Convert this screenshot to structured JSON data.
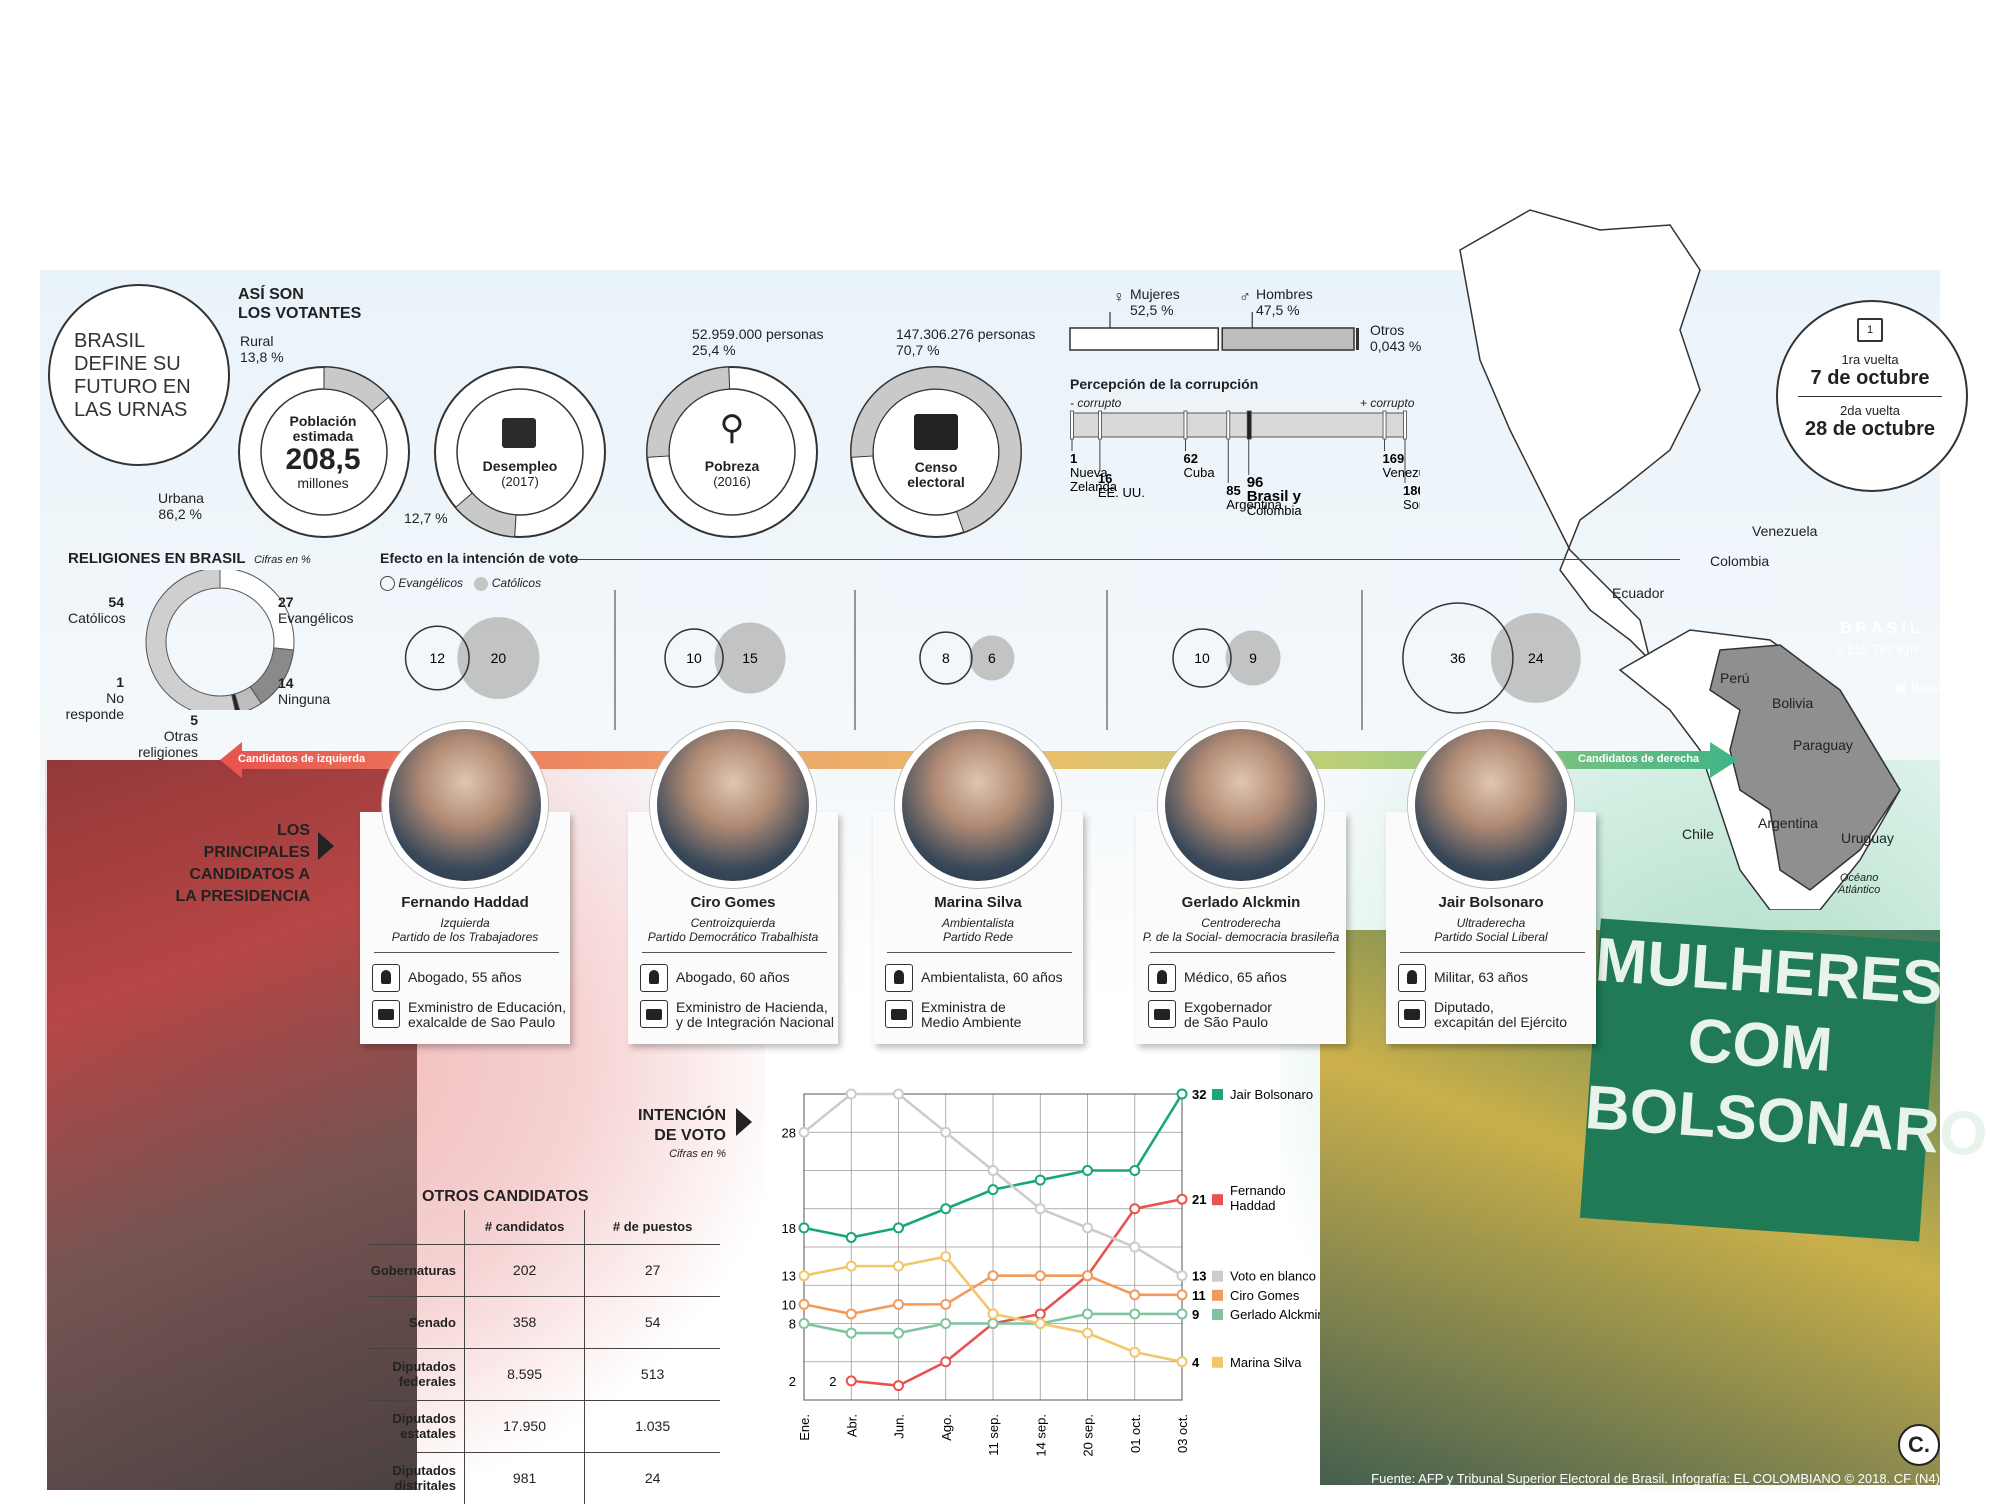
{
  "title": {
    "line1": "BRASIL",
    "line2": "DEFINE SU",
    "line3": "FUTURO EN",
    "line4": "LAS URNAS"
  },
  "voters": {
    "heading1": "ASÍ SON",
    "heading2": "LOS VOTANTES",
    "poblacion": {
      "label1": "Población",
      "label2": "estimada",
      "value": "208,5",
      "unit": "millones",
      "rural_label": "Rural",
      "rural_value": "13,8 %",
      "urbana_label": "Urbana",
      "urbana_value": "86,2 %",
      "rural_fraction": 0.138
    },
    "desempleo": {
      "label": "Desempleo",
      "year": "(2017)",
      "value": "12,7 %",
      "fraction": 0.127
    },
    "pobreza": {
      "label": "Pobreza",
      "year": "(2016)",
      "people": "52.959.000 personas",
      "value": "25,4 %",
      "fraction": 0.254
    },
    "censo": {
      "label1": "Censo",
      "label2": "electoral",
      "people": "147.306.276 personas",
      "value": "70,7 %",
      "fraction": 0.707
    }
  },
  "gender": {
    "mujeres_label": "Mujeres",
    "mujeres_value": "52,5 %",
    "hombres_label": "Hombres",
    "hombres_value": "47,5 %",
    "otros_label": "Otros",
    "otros_value": "0,043 %",
    "mujeres_fraction": 0.525,
    "hombres_fraction": 0.475
  },
  "corruption": {
    "title": "Percepción de la corrupción",
    "less": "- corrupto",
    "more": "+ corrupto",
    "scale_max": 180,
    "items": [
      {
        "rank": "1",
        "name": "Nueva Zelanda",
        "name1": "Nueva",
        "name2": "Zelanda",
        "value": 1
      },
      {
        "rank": "16",
        "name": "EE. UU.",
        "value": 16
      },
      {
        "rank": "62",
        "name": "Cuba",
        "value": 62
      },
      {
        "rank": "85",
        "name": "Argentina",
        "value": 85
      },
      {
        "rank": "96",
        "name": "Brasil",
        "name_suffix": "y",
        "name2": "Colombia",
        "value": 96
      },
      {
        "rank": "169",
        "name": "Venezuela",
        "value": 169
      },
      {
        "rank": "180",
        "name": "Somalia",
        "value": 180
      }
    ]
  },
  "vote_dates": {
    "first_label": "vuelta",
    "first_ord": "1ra",
    "first_date": "7 de octubre",
    "second_label": "vuelta",
    "second_ord": "2da",
    "second_date": "28 de octubre"
  },
  "religion": {
    "title": "RELIGIONES EN BRASIL",
    "subtitle": "Cifras en %",
    "slices": [
      {
        "label": "Católicos",
        "value": 54,
        "color": "#cfcfcf"
      },
      {
        "label": "Evangélicos",
        "value": 27,
        "color": "#ffffff"
      },
      {
        "label": "Ninguna",
        "value": 14,
        "color": "#8a8a8a"
      },
      {
        "label": "Otras religiones",
        "value": 5,
        "color": "#bdbdbd"
      },
      {
        "label": "No responde",
        "value": 1,
        "color": "#222222"
      }
    ],
    "values_text": {
      "catolicos": "54",
      "evangelicos": "27",
      "ninguna": "14",
      "otras": "5",
      "no_responde": "1"
    }
  },
  "effect": {
    "title": "Efecto en la intención de voto",
    "evangelicos": "Evangélicos",
    "catolicos": "Católicos",
    "pairs": [
      {
        "evangelicos": 12,
        "catolicos": 20
      },
      {
        "evangelicos": 10,
        "catolicos": 15
      },
      {
        "evangelicos": 8,
        "catolicos": 6
      },
      {
        "evangelicos": 10,
        "catolicos": 9
      },
      {
        "evangelicos": 36,
        "catolicos": 24
      }
    ]
  },
  "arrow": {
    "left": "Candidatos de izquierda",
    "right": "Candidatos de derecha"
  },
  "candidates_heading": {
    "line1": "LOS PRINCIPALES",
    "line2": "CANDIDATOS A",
    "line3": "LA PRESIDENCIA"
  },
  "candidates": [
    {
      "name": "Fernando Haddad",
      "ideology": "Izquierda",
      "party": "Partido de los Trabajadores",
      "profession": "Abogado, 55 años",
      "career1": "Exministro de Educación,",
      "career2": "exalcalde de Sao Paulo"
    },
    {
      "name": "Ciro Gomes",
      "ideology": "Centroizquierda",
      "party": "Partido Democrático Trabalhista",
      "profession": "Abogado, 60 años",
      "career1": "Exministro de Hacienda,",
      "career2": "y de Integración Nacional"
    },
    {
      "name": "Marina Silva",
      "ideology": "Ambientalista",
      "party": "Partido Rede",
      "profession": "Ambientalista, 60 años",
      "career1": "Exministra de",
      "career2": "Medio Ambiente"
    },
    {
      "name": "Gerlado Alckmin",
      "ideology": "Centroderecha",
      "party": "P. de la Social- democracia brasileña",
      "profession": "Médico, 65 años",
      "career1": "Exgobernador",
      "career2": "de São Paulo"
    },
    {
      "name": "Jair Bolsonaro",
      "ideology": "Ultraderecha",
      "party": "Partido Social Liberal",
      "profession": "Militar, 63 años",
      "career1": "Diputado,",
      "career2": "excapitán del Ejército"
    }
  ],
  "map": {
    "country": "BRASIL",
    "area": "8.515.767 Km²",
    "capital": "Brasilia",
    "ocean1": "Océano",
    "ocean2": "Atlántico",
    "labels": [
      "Venezuela",
      "Colombia",
      "Ecuador",
      "Perú",
      "Bolivia",
      "Paraguay",
      "Chile",
      "Argentina",
      "Uruguay"
    ]
  },
  "otros": {
    "title": "OTROS CANDIDATOS",
    "col1": "# candidatos",
    "col2": "# de puestos",
    "rows": [
      {
        "label1": "Gobernaturas",
        "label2": "",
        "candidatos": "202",
        "puestos": "27"
      },
      {
        "label1": "Senado",
        "label2": "",
        "candidatos": "358",
        "puestos": "54"
      },
      {
        "label1": "Diputados",
        "label2": "federales",
        "candidatos": "8.595",
        "puestos": "513"
      },
      {
        "label1": "Diputados",
        "label2": "estatales",
        "candidatos": "17.950",
        "puestos": "1.035"
      },
      {
        "label1": "Diputados",
        "label2": "distritales",
        "candidatos": "981",
        "puestos": "24"
      }
    ]
  },
  "photo_banner": {
    "line1": "MULHERES",
    "line2": "COM",
    "line3": "BOLSONARO"
  },
  "chart_data": {
    "type": "line",
    "title": "INTENCIÓN DE VOTO",
    "subtitle": "Cifras en %",
    "x": [
      "Ene.",
      "Abr.",
      "Jun.",
      "Ago.",
      "11 sep.",
      "14 sep.",
      "20 sep.",
      "01 oct.",
      "03 oct."
    ],
    "ylim": [
      0,
      32
    ],
    "y_ticks_labeled": [
      2,
      8,
      10,
      13,
      18,
      28
    ],
    "series": [
      {
        "name": "Jair Bolsonaro",
        "color": "#1aa57a",
        "values": [
          18,
          17,
          18,
          20,
          22,
          23,
          24,
          24,
          32
        ],
        "end_label": "32"
      },
      {
        "name": "Fernando Haddad",
        "color": "#e8534f",
        "values": [
          null,
          2,
          1.5,
          4,
          8,
          9,
          13,
          20,
          21
        ],
        "end_label": "21",
        "label_line1": "Fernando",
        "label_line2": "Haddad"
      },
      {
        "name": "Voto en blanco",
        "color": "#cccccc",
        "values": [
          28,
          32,
          32,
          28,
          24,
          20,
          18,
          16,
          13
        ],
        "end_label": "13"
      },
      {
        "name": "Ciro Gomes",
        "color": "#f19a5c",
        "values": [
          10,
          9,
          10,
          10,
          13,
          13,
          13,
          11,
          11
        ],
        "end_label": "11"
      },
      {
        "name": "Gerlado Alckmin",
        "color": "#7fc3a0",
        "values": [
          8,
          7,
          7,
          8,
          8,
          8,
          9,
          9,
          9
        ],
        "end_label": "9"
      },
      {
        "name": "Marina Silva",
        "color": "#f2c66a",
        "values": [
          13,
          14,
          14,
          15,
          9,
          8,
          7,
          5,
          4
        ],
        "end_label": "4"
      }
    ]
  },
  "source": "Fuente: AFP y Tribunal Superior Electoral de Brasil. Infografía: EL COLOMBIANO © 2018. CF (N4)",
  "logo": "C."
}
